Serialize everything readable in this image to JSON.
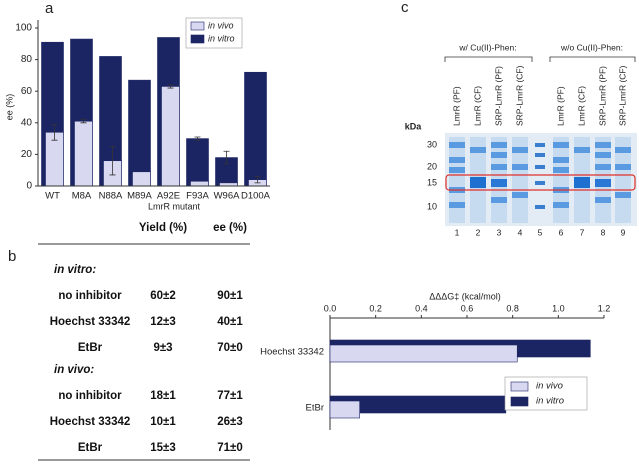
{
  "panels": [
    "a",
    "b",
    "c"
  ],
  "chart_data": [
    {
      "type": "bar",
      "ylabel": "ee (%)",
      "xlabel": "LmrR mutant",
      "categories": [
        "WT",
        "M8A",
        "N88A",
        "M89A",
        "A92E",
        "F93A",
        "W96A",
        "D100A"
      ],
      "series": [
        {
          "name": "in vitro",
          "color": "#1c2563",
          "values": [
            91,
            93,
            82,
            67,
            94,
            30,
            18,
            72
          ],
          "errors": [
            null,
            null,
            null,
            null,
            null,
            1,
            4,
            null
          ]
        },
        {
          "name": "in vivo",
          "color": "#d8d8f0",
          "values": [
            34,
            41,
            16,
            9,
            63,
            3,
            2,
            4
          ],
          "errors": [
            5,
            1,
            9,
            null,
            1,
            null,
            null,
            2
          ]
        }
      ],
      "ylim": [
        0,
        100
      ],
      "yticks": [
        0,
        20,
        40,
        60,
        80,
        100
      ],
      "legend": "top-right"
    },
    {
      "type": "barh",
      "title": "ΔΔΔG‡ (kcal/mol)",
      "categories": [
        "Hoechst 33342",
        "EtBr"
      ],
      "series": [
        {
          "name": "in vitro",
          "color": "#1c2563",
          "values": [
            1.14,
            0.77
          ]
        },
        {
          "name": "in vivo",
          "color": "#d8d8f0",
          "values": [
            0.82,
            0.13
          ]
        }
      ],
      "xlim": [
        0,
        1.2
      ],
      "xticks": [
        {
          "value": 0,
          "label": "0.0"
        },
        {
          "value": 0.2,
          "label": "0.2"
        },
        {
          "value": 0.4,
          "label": "0.4"
        },
        {
          "value": 0.6,
          "label": "0.6"
        },
        {
          "value": 0.8,
          "label": "0.8"
        },
        {
          "value": 1,
          "label": "1.0"
        },
        {
          "value": 1.2,
          "label": "1.2"
        }
      ],
      "legend": "bottom-right"
    }
  ],
  "table": {
    "header": [
      "Yield (%)",
      "ee (%)"
    ],
    "sections": [
      {
        "label": "in vitro:",
        "rows": [
          [
            "no inhibitor",
            "60±2",
            "90±1"
          ],
          [
            "Hoechst 33342",
            "12±3",
            "40±1"
          ],
          [
            "EtBr",
            "9±3",
            "70±0"
          ]
        ]
      },
      {
        "label": "in vivo:",
        "rows": [
          [
            "no inhibitor",
            "18±1",
            "77±1"
          ],
          [
            "Hoechst 33342",
            "10±1",
            "26±3"
          ],
          [
            "EtBr",
            "15±3",
            "71±0"
          ]
        ]
      }
    ]
  },
  "gel": {
    "conditions": [
      "w/ Cu(II)-Phen:",
      "w/o Cu(II)-Phen:"
    ],
    "lane_labels": [
      [
        "LmrR (PF)",
        "LmrR (CF)",
        "SRP-LmrR (PF)",
        "SRP-LmrR (CF)"
      ],
      [
        "LmrR (PF)",
        "LmrR (CF)",
        "SRP-LmrR (PF)",
        "SRP-LmrR (CF)"
      ]
    ],
    "unit": "kDa",
    "ladder": [
      30,
      20,
      15,
      10
    ],
    "lane_numbers": [
      1,
      2,
      3,
      4,
      5,
      6,
      7,
      8,
      9
    ]
  }
}
